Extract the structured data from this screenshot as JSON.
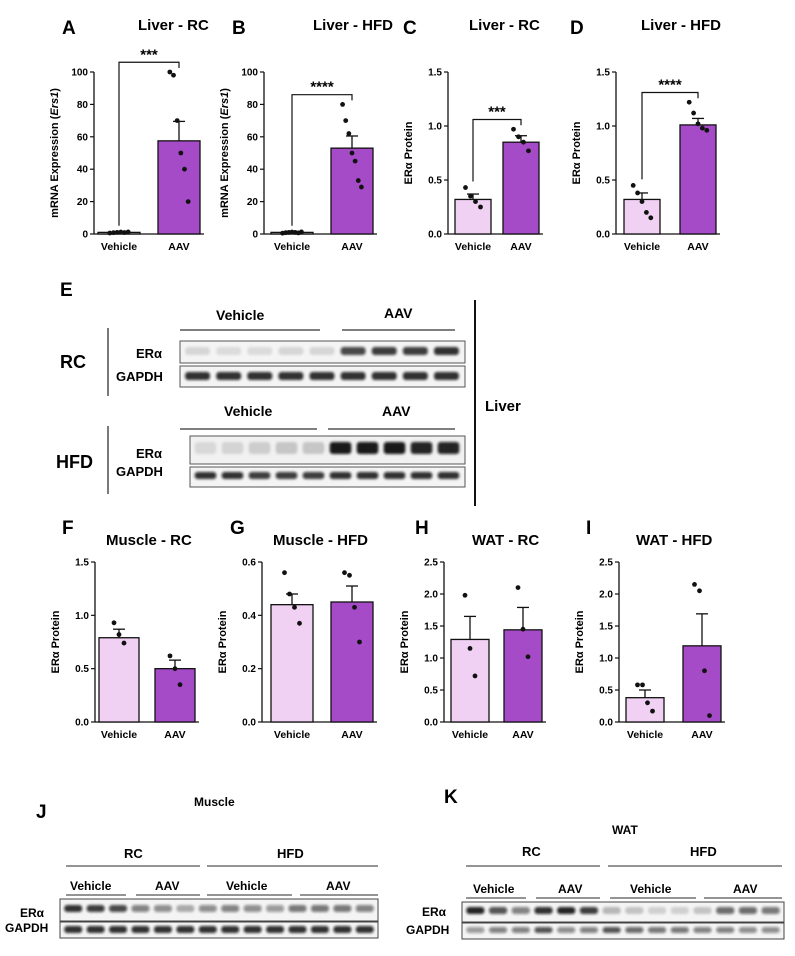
{
  "colors": {
    "vehicle": "#f0d0f3",
    "aav": "#a54bc8",
    "outline": "#111111"
  },
  "chart_data": [
    {
      "panel": "A",
      "type": "bar",
      "title": "Liver - RC",
      "ylabel_pre": "mRNA Expression (",
      "ylabel_ital": "Ers1",
      "ylabel_post": ")",
      "categories": [
        "Vehicle",
        "AAV"
      ],
      "values": [
        1,
        57.5
      ],
      "errors": [
        0.4,
        12
      ],
      "ylim": [
        0,
        100
      ],
      "yticks": [
        0,
        20,
        40,
        60,
        80,
        100
      ],
      "ytick_labels": [
        "0",
        "20",
        "40",
        "60",
        "80",
        "100"
      ],
      "points": [
        [
          0.6,
          0.8,
          1,
          1.2,
          0.9,
          1.3
        ],
        [
          100,
          98,
          70,
          50,
          40,
          20
        ]
      ],
      "significance": "***"
    },
    {
      "panel": "B",
      "type": "bar",
      "title": "Liver - HFD",
      "ylabel_pre": "mRNA Expression (",
      "ylabel_ital": "Ers1",
      "ylabel_post": ")",
      "categories": [
        "Vehicle",
        "AAV"
      ],
      "values": [
        1,
        53
      ],
      "errors": [
        0.4,
        7.5
      ],
      "ylim": [
        0,
        100
      ],
      "yticks": [
        0,
        20,
        40,
        60,
        80,
        100
      ],
      "ytick_labels": [
        "0",
        "20",
        "40",
        "60",
        "80",
        "100"
      ],
      "points": [
        [
          0.5,
          0.8,
          1,
          1.2,
          1,
          0.7,
          1.3
        ],
        [
          80,
          70,
          62,
          50,
          45,
          33,
          29
        ]
      ],
      "significance": "****"
    },
    {
      "panel": "C",
      "type": "bar",
      "title": "Liver - RC",
      "ylabel_pre": "ERα Protein",
      "ylabel_ital": "",
      "ylabel_post": "",
      "categories": [
        "Vehicle",
        "AAV"
      ],
      "values": [
        0.32,
        0.85
      ],
      "errors": [
        0.05,
        0.06
      ],
      "ylim": [
        0,
        1.5
      ],
      "yticks": [
        0,
        0.5,
        1.0,
        1.5
      ],
      "ytick_labels": [
        "0.0",
        "0.5",
        "1.0",
        "1.5"
      ],
      "points": [
        [
          0.43,
          0.35,
          0.3,
          0.25
        ],
        [
          0.97,
          0.9,
          0.85,
          0.77
        ]
      ],
      "significance": "***"
    },
    {
      "panel": "D",
      "type": "bar",
      "title": "Liver - HFD",
      "ylabel_pre": "ERα Protein",
      "ylabel_ital": "",
      "ylabel_post": "",
      "categories": [
        "Vehicle",
        "AAV"
      ],
      "values": [
        0.32,
        1.01
      ],
      "errors": [
        0.06,
        0.06
      ],
      "ylim": [
        0,
        1.5
      ],
      "yticks": [
        0,
        0.5,
        1.0,
        1.5
      ],
      "ytick_labels": [
        "0.0",
        "0.5",
        "1.0",
        "1.5"
      ],
      "points": [
        [
          0.45,
          0.38,
          0.3,
          0.2,
          0.15
        ],
        [
          1.22,
          1.12,
          1.02,
          0.98,
          0.96
        ]
      ],
      "significance": "****"
    },
    {
      "panel": "F",
      "type": "bar",
      "title": "Muscle - RC",
      "ylabel_pre": "ERα Protein",
      "ylabel_ital": "",
      "ylabel_post": "",
      "categories": [
        "Vehicle",
        "AAV"
      ],
      "values": [
        0.79,
        0.5
      ],
      "errors": [
        0.08,
        0.08
      ],
      "ylim": [
        0,
        1.5
      ],
      "yticks": [
        0,
        0.5,
        1.0,
        1.5
      ],
      "ytick_labels": [
        "0.0",
        "0.5",
        "1.0",
        "1.5"
      ],
      "points": [
        [
          0.93,
          0.82,
          0.74
        ],
        [
          0.62,
          0.5,
          0.35
        ]
      ],
      "significance": ""
    },
    {
      "panel": "G",
      "type": "bar",
      "title": "Muscle - HFD",
      "ylabel_pre": "ERα Protein",
      "ylabel_ital": "",
      "ylabel_post": "",
      "categories": [
        "Vehicle",
        "AAV"
      ],
      "values": [
        0.44,
        0.45
      ],
      "errors": [
        0.04,
        0.06
      ],
      "ylim": [
        0,
        0.6
      ],
      "yticks": [
        0,
        0.2,
        0.4,
        0.6
      ],
      "ytick_labels": [
        "0.0",
        "0.2",
        "0.4",
        "0.6"
      ],
      "points": [
        [
          0.56,
          0.48,
          0.43,
          0.37
        ],
        [
          0.56,
          0.55,
          0.43,
          0.3
        ]
      ],
      "significance": ""
    },
    {
      "panel": "H",
      "type": "bar",
      "title": "WAT - RC",
      "ylabel_pre": "ERα Protein",
      "ylabel_ital": "",
      "ylabel_post": "",
      "categories": [
        "Vehicle",
        "AAV"
      ],
      "values": [
        1.29,
        1.44
      ],
      "errors": [
        0.36,
        0.35
      ],
      "ylim": [
        0,
        2.5
      ],
      "yticks": [
        0,
        0.5,
        1.0,
        1.5,
        2.0,
        2.5
      ],
      "ytick_labels": [
        "0.0",
        "0.5",
        "1.0",
        "1.5",
        "2.0",
        "2.5"
      ],
      "points": [
        [
          1.98,
          1.15,
          0.72
        ],
        [
          2.1,
          1.45,
          1.02
        ]
      ],
      "significance": ""
    },
    {
      "panel": "I",
      "type": "bar",
      "title": "WAT - HFD",
      "ylabel_pre": "ERα Protein",
      "ylabel_ital": "",
      "ylabel_post": "",
      "categories": [
        "Vehicle",
        "AAV"
      ],
      "values": [
        0.38,
        1.19
      ],
      "errors": [
        0.12,
        0.5
      ],
      "ylim": [
        0,
        2.5
      ],
      "yticks": [
        0,
        0.5,
        1.0,
        1.5,
        2.0,
        2.5
      ],
      "ytick_labels": [
        "0.0",
        "0.5",
        "1.0",
        "1.5",
        "2.0",
        "2.5"
      ],
      "points": [
        [
          0.58,
          0.58,
          0.3,
          0.17
        ],
        [
          2.15,
          2.05,
          0.8,
          0.1
        ]
      ],
      "significance": ""
    }
  ],
  "blots": {
    "E": {
      "label": "E",
      "tissue": "Liver",
      "rc": {
        "group": "RC",
        "vehicle": "Vehicle",
        "aav": "AAV",
        "row1": "ERα",
        "row2": "GAPDH"
      },
      "hfd": {
        "group": "HFD",
        "vehicle": "Vehicle",
        "aav": "AAV",
        "row1": "ERα",
        "row2": "GAPDH"
      }
    },
    "J": {
      "label": "J",
      "tissue": "Muscle",
      "group1": "RC",
      "group2": "HFD",
      "g1_vehicle": "Vehicle",
      "g1_aav": "AAV",
      "g2_vehicle": "Vehicle",
      "g2_aav": "AAV",
      "row1": "ERα",
      "row2": "GAPDH"
    },
    "K": {
      "label": "K",
      "tissue": "WAT",
      "group1": "RC",
      "group2": "HFD",
      "g1_vehicle": "Vehicle",
      "g1_aav": "AAV",
      "g2_vehicle": "Vehicle",
      "g2_aav": "AAV",
      "row1": "ERα",
      "row2": "GAPDH"
    }
  }
}
